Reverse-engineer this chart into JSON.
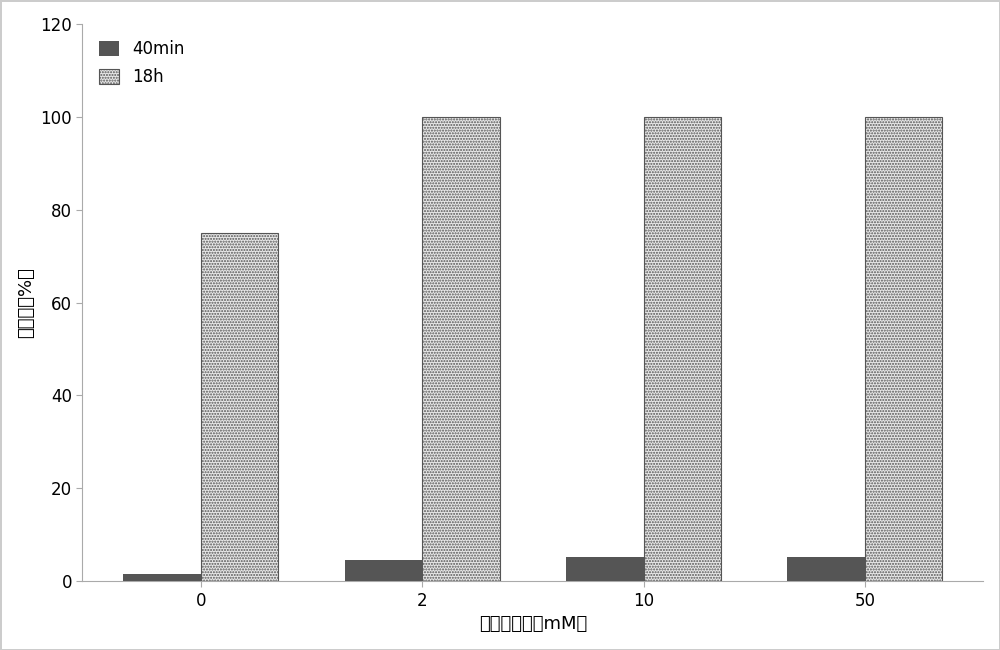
{
  "categories": [
    "0",
    "2",
    "10",
    "50"
  ],
  "values_40min": [
    1.5,
    4.5,
    5.2,
    5.3
  ],
  "values_18h": [
    75,
    100,
    100,
    100
  ],
  "bar_width": 0.35,
  "xlabel": "缓冲液浓度（mM）",
  "ylabel": "转化率（%）",
  "ylim": [
    0,
    120
  ],
  "yticks": [
    0,
    20,
    40,
    60,
    80,
    100,
    120
  ],
  "color_40min": "#555555",
  "legend_labels": [
    "40min",
    "18h"
  ],
  "figsize": [
    10.0,
    6.5
  ],
  "dpi": 100
}
